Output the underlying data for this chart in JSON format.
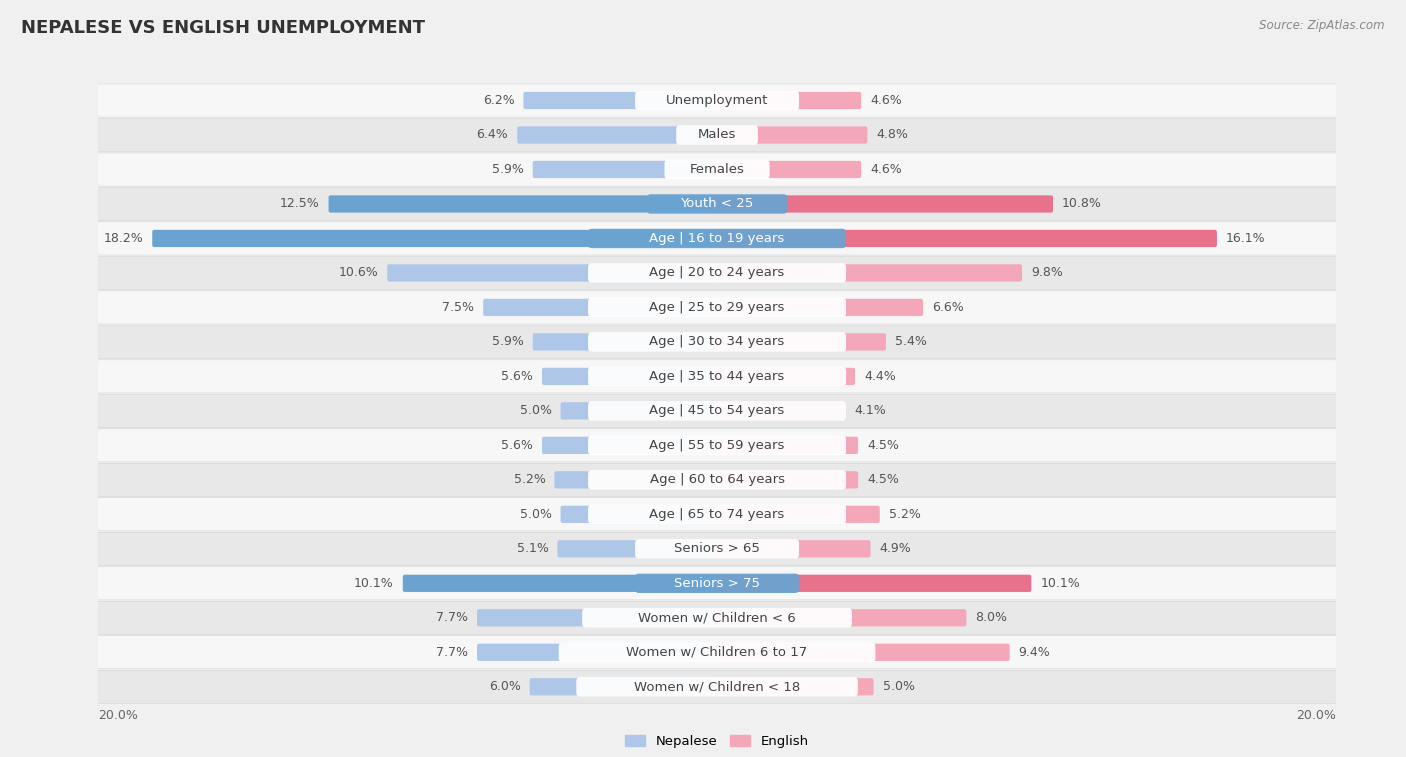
{
  "title": "NEPALESE VS ENGLISH UNEMPLOYMENT",
  "source": "Source: ZipAtlas.com",
  "categories": [
    "Unemployment",
    "Males",
    "Females",
    "Youth < 25",
    "Age | 16 to 19 years",
    "Age | 20 to 24 years",
    "Age | 25 to 29 years",
    "Age | 30 to 34 years",
    "Age | 35 to 44 years",
    "Age | 45 to 54 years",
    "Age | 55 to 59 years",
    "Age | 60 to 64 years",
    "Age | 65 to 74 years",
    "Seniors > 65",
    "Seniors > 75",
    "Women w/ Children < 6",
    "Women w/ Children 6 to 17",
    "Women w/ Children < 18"
  ],
  "nepalese": [
    6.2,
    6.4,
    5.9,
    12.5,
    18.2,
    10.6,
    7.5,
    5.9,
    5.6,
    5.0,
    5.6,
    5.2,
    5.0,
    5.1,
    10.1,
    7.7,
    7.7,
    6.0
  ],
  "english": [
    4.6,
    4.8,
    4.6,
    10.8,
    16.1,
    9.8,
    6.6,
    5.4,
    4.4,
    4.1,
    4.5,
    4.5,
    5.2,
    4.9,
    10.1,
    8.0,
    9.4,
    5.0
  ],
  "nepalese_color": "#aec6e8",
  "english_color": "#f4a7b9",
  "highlight_nepalese_color": "#6ba3d0",
  "highlight_english_color": "#e8718c",
  "highlight_rows": [
    3,
    4,
    14
  ],
  "axis_max": 20.0,
  "background_color": "#f0f0f0",
  "row_light": "#f7f7f7",
  "row_dark": "#e8e8e8",
  "label_fontsize": 9.5,
  "title_fontsize": 13,
  "value_fontsize": 9,
  "legend_nepalese": "Nepalese",
  "legend_english": "English"
}
